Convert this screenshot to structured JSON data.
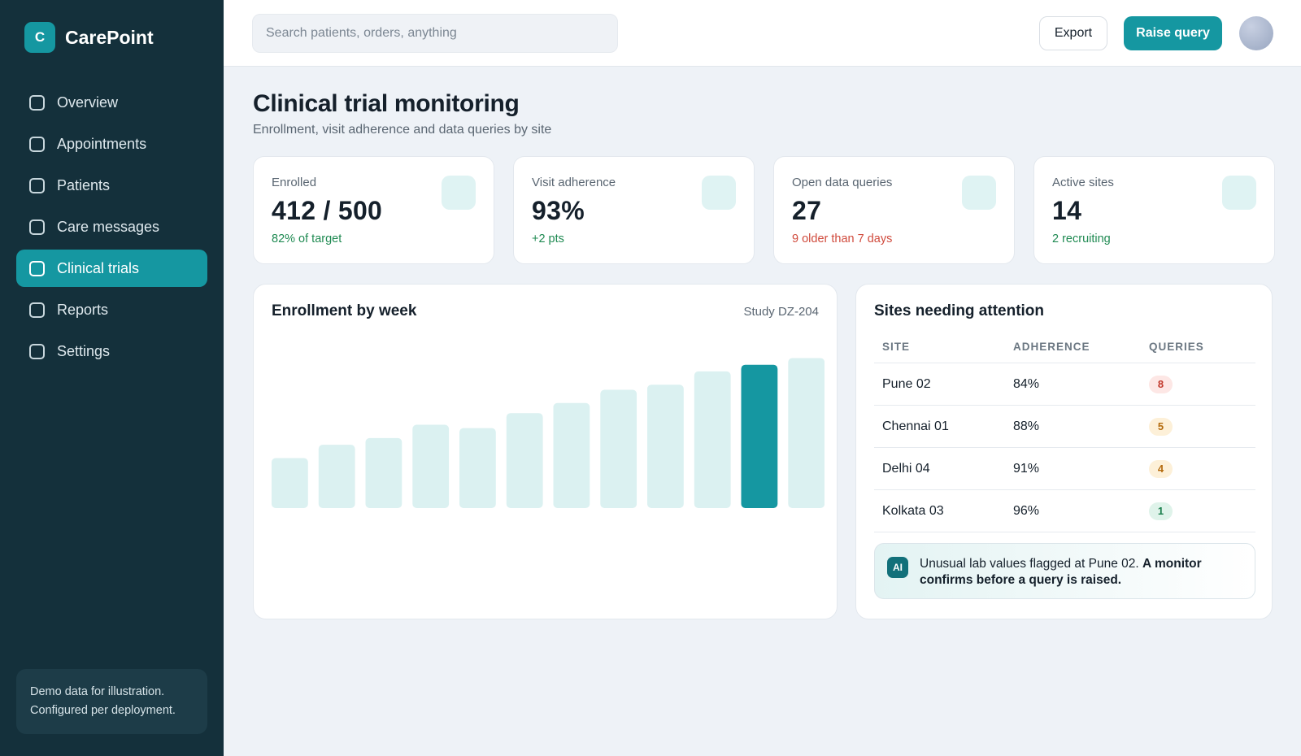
{
  "brand": {
    "logo_letter": "C",
    "name": "CarePoint"
  },
  "sidebar": {
    "items": [
      {
        "label": "Overview",
        "active": false
      },
      {
        "label": "Appointments",
        "active": false
      },
      {
        "label": "Patients",
        "active": false
      },
      {
        "label": "Care messages",
        "active": false
      },
      {
        "label": "Clinical trials",
        "active": true
      },
      {
        "label": "Reports",
        "active": false
      },
      {
        "label": "Settings",
        "active": false
      }
    ],
    "note_line1": "Demo data for illustration.",
    "note_line2": "Configured per deployment."
  },
  "topbar": {
    "search_placeholder": "Search patients, orders, anything",
    "export_label": "Export",
    "primary_label": "Raise query"
  },
  "page": {
    "title": "Clinical trial monitoring",
    "subtitle": "Enrollment, visit adherence and data queries by site"
  },
  "kpis": [
    {
      "label": "Enrolled",
      "value": "412 / 500",
      "delta": "82% of target",
      "tone": "pos"
    },
    {
      "label": "Visit adherence",
      "value": "93%",
      "delta": "+2 pts",
      "tone": "pos"
    },
    {
      "label": "Open data queries",
      "value": "27",
      "delta": "9 older than 7 days",
      "tone": "neg"
    },
    {
      "label": "Active sites",
      "value": "14",
      "delta": "2 recruiting",
      "tone": "pos"
    }
  ],
  "enrollment": {
    "title": "Enrollment by week",
    "tag": "Study DZ-204"
  },
  "chart_data": {
    "type": "bar",
    "title": "Enrollment by week",
    "xlabel": "",
    "ylabel": "",
    "categories": [
      "",
      "",
      "",
      "",
      "",
      "",
      "",
      "",
      "",
      "",
      "",
      ""
    ],
    "values": [
      30,
      38,
      42,
      50,
      48,
      57,
      63,
      71,
      74,
      82,
      86,
      90
    ],
    "highlight_index": 10,
    "ylim": [
      0,
      100
    ],
    "colors": {
      "bar": "#dbf1f1",
      "highlight": "#1597a1"
    }
  },
  "sites": {
    "title": "Sites needing attention",
    "headers": [
      "SITE",
      "ADHERENCE",
      "QUERIES"
    ],
    "rows": [
      {
        "site": "Pune 02",
        "adherence": "84%",
        "queries": "8",
        "tone": "red"
      },
      {
        "site": "Chennai 01",
        "adherence": "88%",
        "queries": "5",
        "tone": "amber"
      },
      {
        "site": "Delhi 04",
        "adherence": "91%",
        "queries": "4",
        "tone": "amber"
      },
      {
        "site": "Kolkata 03",
        "adherence": "96%",
        "queries": "1",
        "tone": "green"
      }
    ],
    "ai_badge": "AI",
    "ai_text": "Unusual lab values flagged at Pune 02.",
    "ai_text_bold": "A monitor confirms before a query is raised."
  },
  "colors": {
    "accent": "#1597a1",
    "sidebar": "#14303b",
    "positive": "#1f8a52",
    "negative": "#d04a3c"
  }
}
